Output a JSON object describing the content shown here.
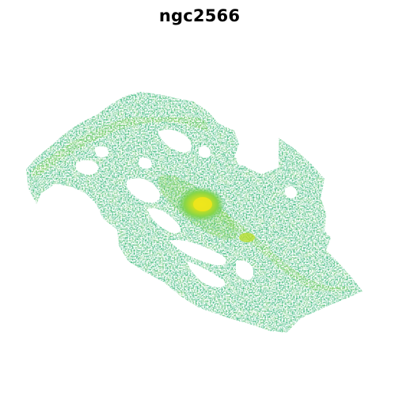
{
  "title": "ngc2566",
  "image": {
    "subject": "galaxy",
    "colormap": "viridis",
    "colors": {
      "background": "#ffffff",
      "low": "#2aa181",
      "mid": "#5ec962",
      "high": "#b8de29",
      "peak": "#f0e51c"
    },
    "axes_visible": false
  }
}
